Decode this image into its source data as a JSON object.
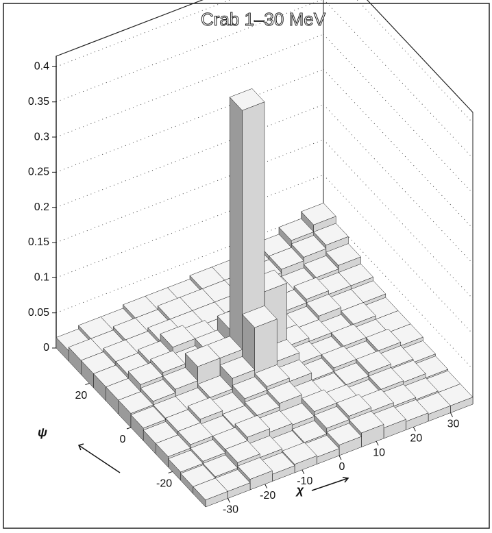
{
  "chart_data": {
    "type": "surface3d",
    "title": "Crab 1–30 MeV",
    "xlabel": "χ",
    "ylabel": "ψ",
    "x": [
      -33,
      -27,
      -21,
      -15,
      -9,
      -3,
      3,
      9,
      15,
      21,
      27,
      33
    ],
    "y": [
      -33,
      -27,
      -21,
      -15,
      -9,
      -3,
      3,
      9,
      15,
      21,
      27,
      33
    ],
    "z": [
      [
        0.01,
        0.01,
        0.015,
        0.01,
        0.012,
        0.01,
        0.015,
        0.02,
        0.015,
        0.012,
        0.01,
        0.01
      ],
      [
        0.01,
        0.012,
        0.02,
        0.015,
        0.01,
        0.012,
        0.02,
        0.025,
        0.02,
        0.015,
        0.012,
        0.01
      ],
      [
        0.012,
        0.015,
        0.02,
        0.025,
        0.02,
        0.018,
        0.025,
        0.02,
        0.015,
        0.02,
        0.018,
        0.012
      ],
      [
        0.015,
        0.02,
        0.018,
        0.02,
        0.025,
        0.03,
        0.02,
        0.018,
        0.02,
        0.025,
        0.02,
        0.015
      ],
      [
        0.015,
        0.02,
        0.025,
        0.02,
        0.03,
        0.035,
        0.03,
        0.02,
        0.025,
        0.02,
        0.025,
        0.02
      ],
      [
        0.018,
        0.02,
        0.02,
        0.025,
        0.04,
        0.1,
        0.04,
        0.025,
        0.02,
        0.025,
        0.02,
        0.02
      ],
      [
        0.02,
        0.025,
        0.03,
        0.05,
        0.05,
        0.39,
        0.12,
        0.03,
        0.025,
        0.02,
        0.025,
        0.02
      ],
      [
        0.02,
        0.03,
        0.035,
        0.03,
        0.04,
        0.06,
        0.04,
        0.03,
        0.025,
        0.03,
        0.025,
        0.025
      ],
      [
        0.02,
        0.025,
        0.03,
        0.04,
        0.035,
        0.03,
        0.035,
        0.03,
        0.03,
        0.035,
        0.03,
        0.03
      ],
      [
        0.02,
        0.025,
        0.025,
        0.03,
        0.03,
        0.03,
        0.03,
        0.035,
        0.03,
        0.03,
        0.035,
        0.04
      ],
      [
        0.02,
        0.02,
        0.025,
        0.025,
        0.03,
        0.03,
        0.03,
        0.03,
        0.035,
        0.04,
        0.045,
        0.05
      ],
      [
        0.015,
        0.02,
        0.02,
        0.025,
        0.025,
        0.025,
        0.03,
        0.03,
        0.035,
        0.04,
        0.05,
        0.06
      ]
    ],
    "xlim": [
      -36,
      36
    ],
    "ylim": [
      -36,
      36
    ],
    "zlim": [
      0,
      0.415
    ],
    "xticks": [
      -30,
      -20,
      -10,
      0,
      10,
      20,
      30
    ],
    "yticks": [
      -20,
      0,
      20
    ],
    "zticks": [
      0,
      0.05,
      0.1,
      0.15,
      0.2,
      0.25,
      0.3,
      0.35,
      0.4
    ],
    "grid": true
  }
}
